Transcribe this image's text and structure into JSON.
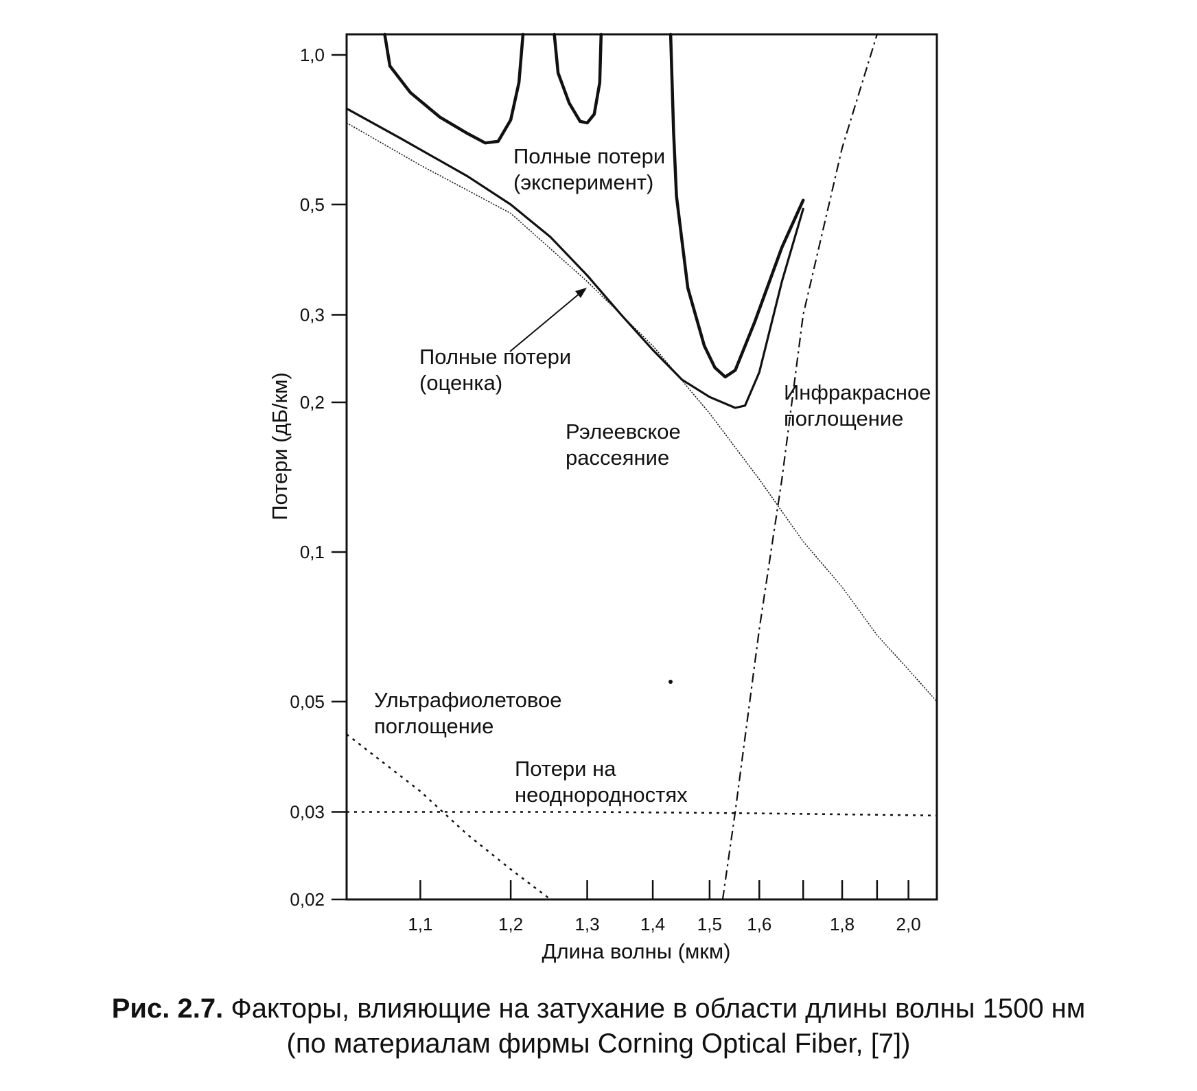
{
  "chart_data": {
    "type": "line",
    "xlabel": "Длина волны (мкм)",
    "ylabel": "Потери  (дБ/км)",
    "x_axis": {
      "scale": "reciprocal",
      "xlim": [
        1.03,
        2.1
      ],
      "ticks": [
        1.1,
        1.2,
        1.3,
        1.4,
        1.5,
        1.6,
        1.7,
        1.8,
        1.9,
        2.0
      ],
      "tick_labels": [
        "1,1",
        "1,2",
        "1,3",
        "1,4",
        "1,5",
        "1,6",
        "",
        "1,8",
        "",
        "2,0"
      ]
    },
    "y_axis": {
      "scale": "log",
      "ylim": [
        0.02,
        1.1
      ],
      "ticks": [
        1.0,
        0.5,
        0.3,
        0.2,
        0.1,
        0.05,
        0.03,
        0.02
      ],
      "tick_labels": [
        "1,0",
        "0,5",
        "0,3",
        "0,2",
        "0,1",
        "0,05",
        "0,03",
        "0,02"
      ]
    },
    "grid": false,
    "series": [
      {
        "style": "solid-bold",
        "segments": [
          [
            [
              1.065,
              1.1
            ],
            [
              1.07,
              0.95
            ],
            [
              1.09,
              0.84
            ],
            [
              1.12,
              0.75
            ],
            [
              1.15,
              0.695
            ],
            [
              1.17,
              0.665
            ],
            [
              1.185,
              0.67
            ],
            [
              1.2,
              0.74
            ],
            [
              1.21,
              0.88
            ],
            [
              1.215,
              1.1
            ]
          ],
          [
            [
              1.255,
              1.1
            ],
            [
              1.26,
              0.92
            ],
            [
              1.275,
              0.8
            ],
            [
              1.29,
              0.735
            ],
            [
              1.3,
              0.73
            ],
            [
              1.31,
              0.76
            ],
            [
              1.318,
              0.88
            ],
            [
              1.32,
              1.1
            ]
          ],
          [
            [
              1.43,
              1.1
            ],
            [
              1.435,
              0.7
            ],
            [
              1.44,
              0.52
            ],
            [
              1.46,
              0.34
            ],
            [
              1.49,
              0.26
            ],
            [
              1.51,
              0.235
            ],
            [
              1.53,
              0.225
            ],
            [
              1.55,
              0.232
            ],
            [
              1.59,
              0.29
            ],
            [
              1.65,
              0.41
            ],
            [
              1.7,
              0.51
            ]
          ]
        ]
      },
      {
        "style": "solid",
        "segments": [
          [
            [
              1.03,
              0.78
            ],
            [
              1.08,
              0.68
            ],
            [
              1.15,
              0.57
            ],
            [
              1.2,
              0.5
            ],
            [
              1.25,
              0.43
            ],
            [
              1.3,
              0.36
            ],
            [
              1.35,
              0.3
            ],
            [
              1.4,
              0.255
            ],
            [
              1.45,
              0.222
            ],
            [
              1.5,
              0.205
            ],
            [
              1.55,
              0.195
            ],
            [
              1.57,
              0.197
            ],
            [
              1.6,
              0.23
            ],
            [
              1.65,
              0.35
            ],
            [
              1.7,
              0.49
            ]
          ]
        ]
      },
      {
        "style": "thin-dotted",
        "segments": [
          [
            [
              1.03,
              0.73
            ],
            [
              1.1,
              0.6
            ],
            [
              1.2,
              0.48
            ],
            [
              1.3,
              0.35
            ],
            [
              1.4,
              0.26
            ],
            [
              1.5,
              0.19
            ],
            [
              1.6,
              0.14
            ],
            [
              1.7,
              0.105
            ],
            [
              1.8,
              0.085
            ],
            [
              1.9,
              0.068
            ],
            [
              2.0,
              0.058
            ],
            [
              2.1,
              0.05
            ]
          ]
        ]
      },
      {
        "style": "dash-dot",
        "segments": [
          [
            [
              1.525,
              0.02
            ],
            [
              1.55,
              0.03
            ],
            [
              1.6,
              0.07
            ],
            [
              1.65,
              0.14
            ],
            [
              1.7,
              0.3
            ],
            [
              1.8,
              0.65
            ],
            [
              1.9,
              1.1
            ]
          ]
        ]
      },
      {
        "style": "dotted",
        "segments": [
          [
            [
              1.03,
              0.043
            ],
            [
              1.1,
              0.033
            ],
            [
              1.15,
              0.027
            ],
            [
              1.2,
              0.023
            ],
            [
              1.25,
              0.02
            ]
          ]
        ]
      },
      {
        "style": "dotted",
        "segments": [
          [
            [
              1.03,
              0.03
            ],
            [
              1.3,
              0.03
            ],
            [
              1.6,
              0.0298
            ],
            [
              2.1,
              0.0295
            ]
          ]
        ]
      }
    ],
    "annotations": [
      {
        "lines": [
          "Полные потери",
          "(эксперимент)"
        ]
      },
      {
        "lines": [
          "Полные потери",
          "(оценка)"
        ]
      },
      {
        "lines": [
          "Рэлеевское",
          "рассеяние"
        ]
      },
      {
        "lines": [
          "Инфракрасное",
          "поглощение"
        ]
      },
      {
        "lines": [
          "Ультрафиолетовое",
          "поглощение"
        ]
      },
      {
        "lines": [
          "Потери на",
          "неоднородностях"
        ]
      }
    ]
  },
  "caption": {
    "label": "Рис. 2.7.",
    "line1": "Факторы, влияющие на затухание в области длины волны 1500 нм",
    "line2": "(по материалам фирмы Corning Optical Fiber, [7])"
  }
}
